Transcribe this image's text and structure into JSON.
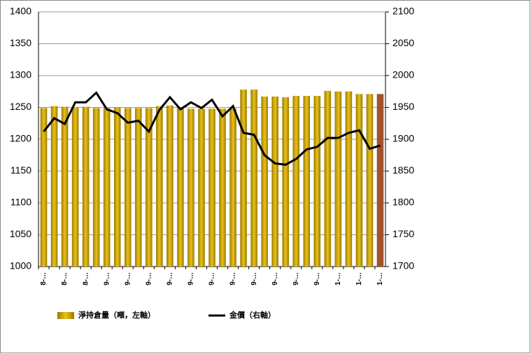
{
  "chart_data": {
    "type": "bar_line_dual_axis",
    "categories": [
      "8-…",
      null,
      "8-…",
      null,
      "8-…",
      null,
      "9-…",
      null,
      "9-…",
      null,
      "9-…",
      null,
      "9-…",
      null,
      "9-…",
      null,
      "9-…",
      null,
      "9-…",
      null,
      "9-…",
      null,
      "9-…",
      null,
      "9-…",
      null,
      "9-…",
      null,
      "1-…",
      null,
      "1-…",
      null,
      "1-…"
    ],
    "series": [
      {
        "name": "淨持倉量（噸，左軸）",
        "type": "bar",
        "color": "#c9a208",
        "colors": [
          "#c9a208",
          "#c9a208",
          "#c9a208",
          "#c9a208",
          "#c9a208",
          "#c9a208",
          "#c9a208",
          "#c9a208",
          "#c9a208",
          "#c9a208",
          "#c9a208",
          "#c9a208",
          "#c9a208",
          "#c9a208",
          "#c9a208",
          "#c9a208",
          "#c9a208",
          "#c9a208",
          "#c9a208",
          "#c9a208",
          "#c9a208",
          "#c9a208",
          "#c9a208",
          "#c9a208",
          "#c9a208",
          "#c9a208",
          "#c9a208",
          "#c9a208",
          "#c9a208",
          "#c9a208",
          "#c9a208",
          "#c9a208",
          "#a0522d"
        ],
        "values": [
          1249,
          1252,
          1251,
          1250,
          1251,
          1249,
          1249,
          1250,
          1249,
          1249,
          1249,
          1252,
          1253,
          1249,
          1248,
          1248,
          1248,
          1248,
          1248,
          1278,
          1278,
          1267,
          1267,
          1266,
          1268,
          1268,
          1268,
          1276,
          1275,
          1275,
          1271,
          1271,
          1271
        ]
      },
      {
        "name": "金價（右軸）",
        "type": "line",
        "axis": "y2",
        "color": "#000000",
        "values": [
          1912,
          1933,
          1924,
          1958,
          1958,
          1973,
          1947,
          1941,
          1926,
          1929,
          1912,
          1946,
          1966,
          1947,
          1958,
          1949,
          1962,
          1936,
          1952,
          1910,
          1907,
          1875,
          1862,
          1860,
          1869,
          1884,
          1888,
          1902,
          1902,
          1910,
          1914,
          1885,
          1890
        ]
      }
    ],
    "ylim": [
      1000,
      1400
    ],
    "yticks": [
      1000,
      1050,
      1100,
      1150,
      1200,
      1250,
      1300,
      1350,
      1400
    ],
    "y2lim": [
      1700,
      2100
    ],
    "y2ticks": [
      1700,
      1750,
      1800,
      1850,
      1900,
      1950,
      2000,
      2050,
      2100
    ],
    "grid": true,
    "legend": "bottom"
  }
}
